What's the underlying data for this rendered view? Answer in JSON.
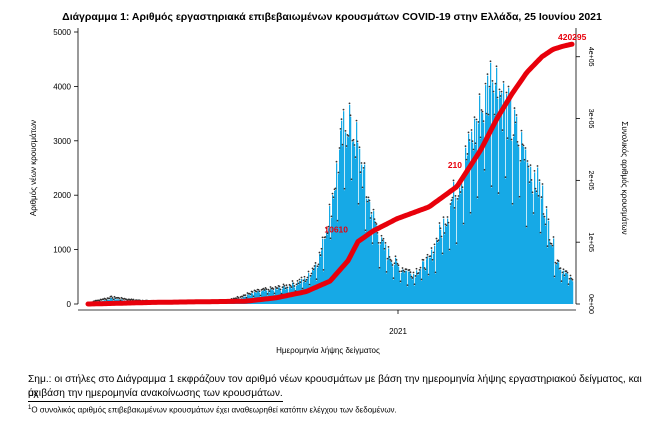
{
  "chart_data": {
    "type": "bar",
    "title": "Διάγραμμα 1: Αριθμός εργαστηριακά επιβεβαιωμένων κρουσμάτων COVID-19 στην Ελλάδα, 25 Ιουνίου 2021",
    "xlabel": "Ημερομηνία λήψης δείγματος",
    "ylabel": "Αριθμός νέων κρουσμάτων",
    "y2label": "Συνολικός αριθμός κρουσμάτων",
    "x_tick_labels": [
      "2021"
    ],
    "y_ticks": [
      0,
      1000,
      2000,
      3000,
      4000,
      5000
    ],
    "y_tick_labels": [
      "0",
      "1000",
      "2000",
      "3000",
      "4000",
      "5000"
    ],
    "y2_ticks": [
      0,
      100000,
      200000,
      300000,
      400000
    ],
    "y2_tick_labels": [
      "0e+00",
      "1e+05",
      "2e+05",
      "3e+05",
      "4e+05"
    ],
    "ylim": [
      0,
      5000
    ],
    "y2lim": [
      0,
      440000
    ],
    "x_range": [
      "2020-02-26",
      "2021-06-24"
    ],
    "grid": false,
    "bar_color": "#16a9e6",
    "line_color": "#e8000b",
    "daily_new_cases_anchors": [
      {
        "x": "2020-02-26",
        "y": 0
      },
      {
        "x": "2020-03-20",
        "y": 100
      },
      {
        "x": "2020-04-15",
        "y": 40
      },
      {
        "x": "2020-06-01",
        "y": 10
      },
      {
        "x": "2020-07-15",
        "y": 40
      },
      {
        "x": "2020-08-10",
        "y": 200
      },
      {
        "x": "2020-09-10",
        "y": 300
      },
      {
        "x": "2020-10-01",
        "y": 450
      },
      {
        "x": "2020-10-15",
        "y": 900
      },
      {
        "x": "2020-10-25",
        "y": 1800
      },
      {
        "x": "2020-11-05",
        "y": 3000
      },
      {
        "x": "2020-11-12",
        "y": 3550
      },
      {
        "x": "2020-11-20",
        "y": 3000
      },
      {
        "x": "2020-12-01",
        "y": 2000
      },
      {
        "x": "2020-12-15",
        "y": 1100
      },
      {
        "x": "2020-12-31",
        "y": 700
      },
      {
        "x": "2021-01-15",
        "y": 550
      },
      {
        "x": "2021-02-01",
        "y": 800
      },
      {
        "x": "2021-02-15",
        "y": 1500
      },
      {
        "x": "2021-03-01",
        "y": 2200
      },
      {
        "x": "2021-03-15",
        "y": 3000
      },
      {
        "x": "2021-03-28",
        "y": 3800
      },
      {
        "x": "2021-04-05",
        "y": 4300
      },
      {
        "x": "2021-04-12",
        "y": 4000
      },
      {
        "x": "2021-04-25",
        "y": 3300
      },
      {
        "x": "2021-05-10",
        "y": 2700
      },
      {
        "x": "2021-05-25",
        "y": 2000
      },
      {
        "x": "2021-06-08",
        "y": 800
      },
      {
        "x": "2021-06-24",
        "y": 400
      }
    ],
    "cumulative_cases_anchors": [
      {
        "x": "2020-02-26",
        "y": 0
      },
      {
        "x": "2020-05-01",
        "y": 2600
      },
      {
        "x": "2020-08-01",
        "y": 4500
      },
      {
        "x": "2020-09-01",
        "y": 10000
      },
      {
        "x": "2020-10-01",
        "y": 20000
      },
      {
        "x": "2020-10-25",
        "y": 37000
      },
      {
        "x": "2020-11-12",
        "y": 70000
      },
      {
        "x": "2020-11-22",
        "y": 101000
      },
      {
        "x": "2020-12-07",
        "y": 118000
      },
      {
        "x": "2020-12-31",
        "y": 138000
      },
      {
        "x": "2021-02-01",
        "y": 157000
      },
      {
        "x": "2021-03-01",
        "y": 190000
      },
      {
        "x": "2021-03-25",
        "y": 250000
      },
      {
        "x": "2021-04-10",
        "y": 300000
      },
      {
        "x": "2021-04-25",
        "y": 340000
      },
      {
        "x": "2021-05-10",
        "y": 375000
      },
      {
        "x": "2021-05-25",
        "y": 400000
      },
      {
        "x": "2021-06-05",
        "y": 412000
      },
      {
        "x": "2021-06-15",
        "y": 417000
      },
      {
        "x": "2021-06-24",
        "y": 420295
      }
    ],
    "annotations": [
      {
        "text": "420295",
        "x": "2021-06-24",
        "y2": 420295
      },
      {
        "text": "210",
        "x": "2021-03-10",
        "y2": 210000
      },
      {
        "text": "10610",
        "x": "2020-11-18",
        "y2": 106000
      }
    ]
  },
  "notes": {
    "line1": "Σημ.: οι στήλες στο Διάγραμμα 1 εκφράζουν τον αριθμό νέων κρουσμάτων με βάση την ημερομηνία λήψης εργαστηριακού δείγματος, και όχι",
    "line2": "με βάση την ημερομηνία ανακοίνωσης των κρουσμάτων.",
    "footnote_mark": "1",
    "footnote": "Ο συνολικός αριθμός επιβεβαιωμένων κρουσμάτων έχει αναθεωρηθεί κατόπιν ελέγχου των δεδομένων."
  }
}
